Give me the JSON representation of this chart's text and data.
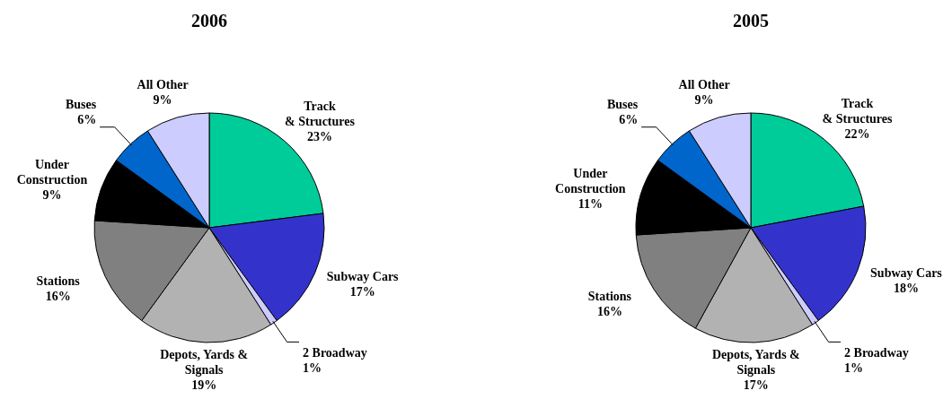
{
  "chart_data": [
    {
      "type": "pie",
      "title": "2006",
      "categories": [
        "Track\n& Structures",
        "Subway Cars",
        "2 Broadway",
        "Depots, Yards &\nSignals",
        "Stations",
        "Under\nConstruction",
        "Buses",
        "All Other"
      ],
      "values": [
        23,
        17,
        1,
        19,
        16,
        9,
        6,
        9
      ],
      "colors": [
        "#00cc99",
        "#3333cc",
        "#ccccff",
        "#b2b2b2",
        "#808080",
        "#000000",
        "#0066cc",
        "#ccccff"
      ],
      "value_labels": [
        "23%",
        "17%",
        "1%",
        "19%",
        "16%",
        "9%",
        "6%",
        "9%"
      ]
    },
    {
      "type": "pie",
      "title": "2005",
      "categories": [
        "Track\n& Structures",
        "Subway Cars",
        "2 Broadway",
        "Depots, Yards &\nSignals",
        "Stations",
        "Under\nConstruction",
        "Buses",
        "All Other"
      ],
      "values": [
        22,
        18,
        1,
        17,
        16,
        11,
        6,
        9
      ],
      "colors": [
        "#00cc99",
        "#3333cc",
        "#ccccff",
        "#b2b2b2",
        "#808080",
        "#000000",
        "#0066cc",
        "#ccccff"
      ],
      "value_labels": [
        "22%",
        "18%",
        "1%",
        "17%",
        "16%",
        "11%",
        "6%",
        "9%"
      ]
    }
  ]
}
